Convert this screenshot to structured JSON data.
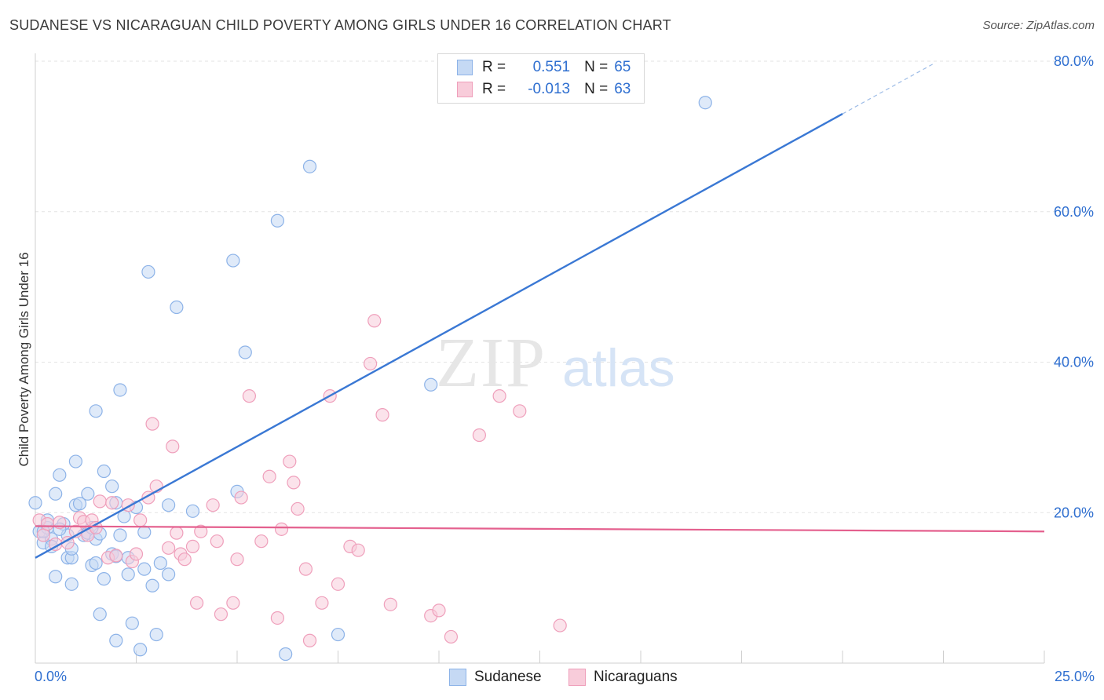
{
  "title": "SUDANESE VS NICARAGUAN CHILD POVERTY AMONG GIRLS UNDER 16 CORRELATION CHART",
  "source": "Source: ZipAtlas.com",
  "watermark": {
    "zip": "ZIP",
    "atlas": "atlas"
  },
  "legend": {
    "rows": [
      {
        "r_label": "R =",
        "r_value": "0.551",
        "n_label": "N =",
        "n_value": "65",
        "color": "#8db3e8",
        "fill": "#c5d9f4"
      },
      {
        "r_label": "R =",
        "r_value": "-0.013",
        "n_label": "N =",
        "n_value": "63",
        "color": "#ef9fbb",
        "fill": "#f8ccda"
      }
    ]
  },
  "bottom_legend": [
    "Sudanese",
    "Nicaraguans"
  ],
  "x_tick_labels": {
    "left": "0.0%",
    "right": "25.0%"
  },
  "chart_data": {
    "type": "scatter",
    "ylabel": "Child Poverty Among Girls Under 16",
    "xlim": [
      0,
      25
    ],
    "ylim": [
      0,
      80
    ],
    "x_unit": "%",
    "y_unit": "%",
    "y_ticks": [
      20,
      40,
      60,
      80
    ],
    "y_tick_labels": [
      "20.0%",
      "40.0%",
      "60.0%",
      "80.0%"
    ],
    "grid": "horizontal dashed",
    "series": [
      {
        "name": "Sudanese",
        "color": "#3a78d4",
        "marker_fill": "#c5d9f4",
        "marker_stroke": "#8db3e8",
        "trend": {
          "x0": 0,
          "y0": 14.0,
          "x1": 20,
          "y1": 73.0,
          "dashed_to_x": 22.3,
          "dashed_to_y": 79.8
        },
        "points": [
          [
            0.0,
            21.3
          ],
          [
            0.1,
            17.5
          ],
          [
            0.2,
            16.0
          ],
          [
            0.3,
            18.0
          ],
          [
            0.4,
            16.5
          ],
          [
            0.4,
            15.5
          ],
          [
            0.5,
            22.5
          ],
          [
            0.5,
            11.5
          ],
          [
            0.6,
            25.0
          ],
          [
            0.7,
            18.5
          ],
          [
            0.8,
            14.0
          ],
          [
            0.8,
            17.0
          ],
          [
            0.9,
            10.5
          ],
          [
            0.9,
            14.0
          ],
          [
            1.0,
            26.8
          ],
          [
            1.0,
            21.0
          ],
          [
            1.1,
            21.2
          ],
          [
            1.2,
            17.0
          ],
          [
            1.3,
            22.5
          ],
          [
            1.3,
            17.3
          ],
          [
            1.4,
            13.0
          ],
          [
            1.5,
            13.3
          ],
          [
            1.5,
            16.5
          ],
          [
            1.6,
            17.2
          ],
          [
            1.5,
            33.5
          ],
          [
            1.6,
            6.5
          ],
          [
            1.7,
            25.5
          ],
          [
            1.7,
            11.2
          ],
          [
            1.9,
            23.5
          ],
          [
            1.9,
            14.5
          ],
          [
            2.0,
            21.3
          ],
          [
            2.0,
            3.0
          ],
          [
            2.1,
            17.0
          ],
          [
            2.1,
            36.3
          ],
          [
            2.2,
            19.5
          ],
          [
            2.3,
            14.0
          ],
          [
            2.3,
            11.8
          ],
          [
            2.4,
            5.3
          ],
          [
            2.5,
            20.7
          ],
          [
            2.6,
            1.8
          ],
          [
            2.7,
            17.4
          ],
          [
            2.7,
            12.5
          ],
          [
            2.8,
            52.0
          ],
          [
            2.9,
            10.3
          ],
          [
            3.0,
            3.8
          ],
          [
            3.1,
            13.3
          ],
          [
            3.3,
            21.0
          ],
          [
            3.3,
            11.8
          ],
          [
            3.5,
            47.3
          ],
          [
            3.9,
            20.2
          ],
          [
            4.9,
            53.5
          ],
          [
            5.0,
            22.8
          ],
          [
            5.2,
            41.3
          ],
          [
            6.0,
            58.8
          ],
          [
            6.2,
            1.2
          ],
          [
            6.8,
            66.0
          ],
          [
            7.5,
            3.8
          ],
          [
            9.8,
            37.0
          ],
          [
            16.6,
            74.5
          ],
          [
            0.2,
            17.5
          ],
          [
            0.3,
            19.0
          ],
          [
            0.6,
            17.8
          ],
          [
            1.4,
            18.0
          ],
          [
            0.9,
            15.2
          ],
          [
            2.0,
            14.2
          ]
        ]
      },
      {
        "name": "Nicaraguans",
        "color": "#e4608e",
        "marker_fill": "#f8ccda",
        "marker_stroke": "#ef9fbb",
        "trend": {
          "x0": 0,
          "y0": 18.2,
          "x1": 25,
          "y1": 17.5
        },
        "points": [
          [
            0.1,
            19.0
          ],
          [
            0.2,
            17.0
          ],
          [
            0.3,
            18.5
          ],
          [
            0.5,
            15.8
          ],
          [
            0.6,
            18.7
          ],
          [
            0.8,
            16.0
          ],
          [
            1.0,
            17.5
          ],
          [
            1.1,
            19.3
          ],
          [
            1.2,
            18.8
          ],
          [
            1.3,
            17.0
          ],
          [
            1.4,
            19.0
          ],
          [
            1.5,
            18.0
          ],
          [
            1.6,
            21.5
          ],
          [
            1.8,
            14.0
          ],
          [
            1.9,
            21.3
          ],
          [
            2.0,
            14.3
          ],
          [
            2.3,
            21.0
          ],
          [
            2.4,
            13.5
          ],
          [
            2.5,
            14.5
          ],
          [
            2.6,
            19.0
          ],
          [
            2.8,
            22.0
          ],
          [
            2.9,
            31.8
          ],
          [
            3.0,
            23.5
          ],
          [
            3.3,
            15.3
          ],
          [
            3.4,
            28.8
          ],
          [
            3.5,
            17.3
          ],
          [
            3.6,
            14.5
          ],
          [
            3.7,
            13.8
          ],
          [
            3.9,
            15.5
          ],
          [
            4.0,
            8.0
          ],
          [
            4.1,
            17.5
          ],
          [
            4.4,
            21.0
          ],
          [
            4.5,
            16.2
          ],
          [
            4.6,
            6.5
          ],
          [
            4.9,
            8.0
          ],
          [
            5.0,
            13.8
          ],
          [
            5.1,
            22.0
          ],
          [
            5.3,
            35.5
          ],
          [
            5.6,
            16.2
          ],
          [
            5.8,
            24.8
          ],
          [
            6.0,
            6.0
          ],
          [
            6.1,
            17.8
          ],
          [
            6.3,
            26.8
          ],
          [
            6.4,
            24.0
          ],
          [
            6.5,
            20.5
          ],
          [
            6.7,
            12.5
          ],
          [
            6.8,
            3.0
          ],
          [
            7.1,
            8.0
          ],
          [
            7.3,
            35.5
          ],
          [
            7.5,
            10.5
          ],
          [
            7.8,
            15.5
          ],
          [
            8.0,
            15.0
          ],
          [
            8.3,
            39.8
          ],
          [
            8.4,
            45.5
          ],
          [
            8.6,
            33.0
          ],
          [
            8.8,
            7.8
          ],
          [
            9.8,
            6.3
          ],
          [
            10.0,
            7.0
          ],
          [
            10.3,
            3.5
          ],
          [
            11.0,
            30.3
          ],
          [
            11.5,
            35.5
          ],
          [
            12.0,
            33.5
          ],
          [
            13.0,
            5.0
          ]
        ]
      }
    ]
  }
}
